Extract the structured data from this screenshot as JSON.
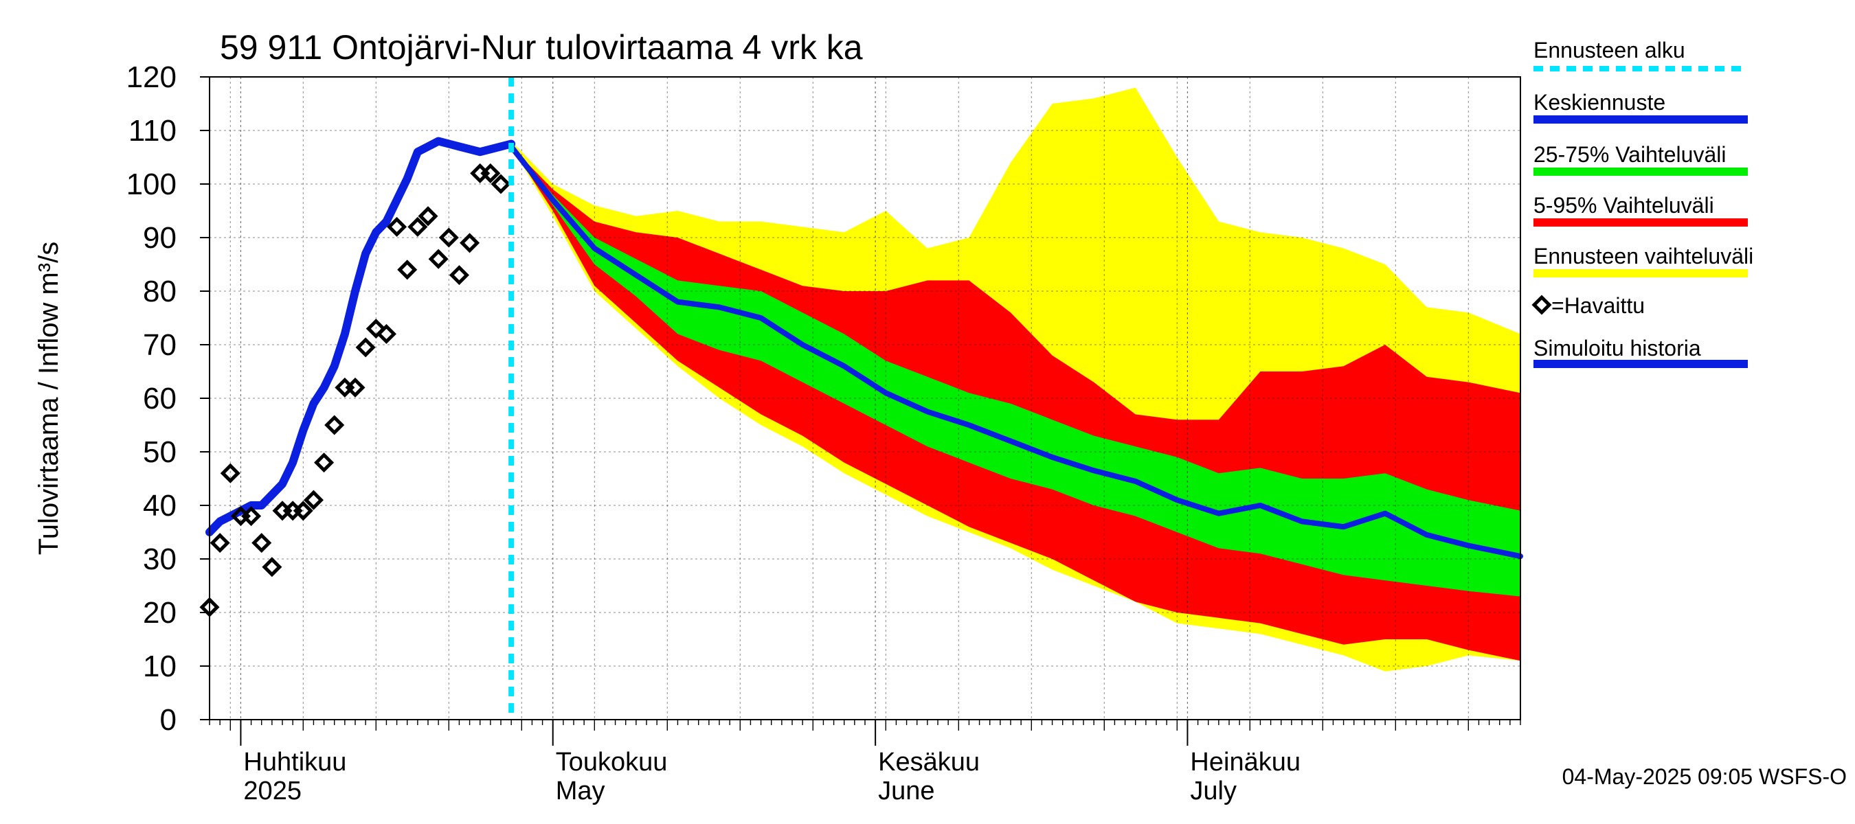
{
  "chart_data": {
    "type": "area",
    "title": "59 911 Ontojärvi-Nur tulovirtaama 4 vrk ka",
    "ylabel": "Tulovirtaama / Inflow    m³/s",
    "ylim": [
      0,
      120
    ],
    "yticks": [
      0,
      10,
      20,
      30,
      40,
      50,
      60,
      70,
      80,
      90,
      100,
      110,
      120
    ],
    "xlim": [
      "2025-03-29",
      "2025-08-02"
    ],
    "grid": true,
    "legend_position": "right",
    "month_labels": [
      {
        "date": "2025-04-01",
        "fi": "Huhtikuu",
        "en": "2025"
      },
      {
        "date": "2025-05-01",
        "fi": "Toukokuu",
        "en": "May"
      },
      {
        "date": "2025-06-01",
        "fi": "Kesäkuu",
        "en": "June"
      },
      {
        "date": "2025-07-01",
        "fi": "Heinäkuu",
        "en": "July"
      }
    ],
    "footer": "04-May-2025 09:05 WSFS-O",
    "forecast_start": "2025-04-27",
    "colors": {
      "forecast_start": "#00e5ff",
      "median": "#0a1fe0",
      "band_25_75": "#00ee00",
      "band_5_95": "#ff0000",
      "band_full": "#ffff00",
      "observed": "#000000",
      "history": "#0a1fe0"
    },
    "legend": [
      {
        "label": "Ennusteen alku",
        "kind": "dash",
        "color": "#00e5ff"
      },
      {
        "label": "Keskiennuste",
        "kind": "line",
        "color": "#0a1fe0"
      },
      {
        "label": "25-75% Vaihteluväli",
        "kind": "line",
        "color": "#00ee00"
      },
      {
        "label": "5-95% Vaihteluväli",
        "kind": "line",
        "color": "#ff0000"
      },
      {
        "label": "Ennusteen vaihteluväli",
        "kind": "line",
        "color": "#ffff00"
      },
      {
        "label": "=Havaittu",
        "kind": "marker",
        "color": "#000000"
      },
      {
        "label": "Simuloitu historia",
        "kind": "line",
        "color": "#0a1fe0"
      }
    ],
    "series": [
      {
        "name": "Simuloitu historia",
        "x": [
          "2025-03-29",
          "2025-03-30",
          "2025-03-31",
          "2025-04-01",
          "2025-04-02",
          "2025-04-03",
          "2025-04-04",
          "2025-04-05",
          "2025-04-06",
          "2025-04-07",
          "2025-04-08",
          "2025-04-09",
          "2025-04-10",
          "2025-04-11",
          "2025-04-12",
          "2025-04-13",
          "2025-04-14",
          "2025-04-15",
          "2025-04-16",
          "2025-04-17",
          "2025-04-18",
          "2025-04-19",
          "2025-04-20",
          "2025-04-21",
          "2025-04-22",
          "2025-04-23",
          "2025-04-24",
          "2025-04-25",
          "2025-04-26",
          "2025-04-27"
        ],
        "y": [
          35,
          37,
          38,
          39,
          40,
          40,
          42,
          44,
          48,
          54,
          59,
          62,
          66,
          72,
          80,
          87,
          91,
          93,
          97,
          101,
          106,
          107,
          108,
          107.5,
          107,
          106.5,
          106,
          106.5,
          107,
          107.5
        ]
      },
      {
        "name": "Havaittu",
        "x": [
          "2025-03-29",
          "2025-03-30",
          "2025-03-31",
          "2025-04-01",
          "2025-04-02",
          "2025-04-03",
          "2025-04-04",
          "2025-04-05",
          "2025-04-06",
          "2025-04-07",
          "2025-04-08",
          "2025-04-09",
          "2025-04-10",
          "2025-04-11",
          "2025-04-12",
          "2025-04-13",
          "2025-04-14",
          "2025-04-15",
          "2025-04-16",
          "2025-04-17",
          "2025-04-18",
          "2025-04-19",
          "2025-04-20",
          "2025-04-21",
          "2025-04-22",
          "2025-04-23",
          "2025-04-24",
          "2025-04-25",
          "2025-04-26"
        ],
        "y": [
          21,
          33,
          46,
          38,
          38,
          33,
          28.5,
          39,
          39,
          39,
          41,
          48,
          55,
          62,
          62,
          69.5,
          73,
          72,
          92,
          84,
          92,
          94,
          86,
          90,
          83,
          89,
          102,
          102,
          100
        ]
      },
      {
        "name": "Keskiennuste",
        "x": [
          "2025-04-27",
          "2025-05-01",
          "2025-05-05",
          "2025-05-09",
          "2025-05-13",
          "2025-05-17",
          "2025-05-21",
          "2025-05-25",
          "2025-05-29",
          "2025-06-02",
          "2025-06-06",
          "2025-06-10",
          "2025-06-14",
          "2025-06-18",
          "2025-06-22",
          "2025-06-26",
          "2025-06-30",
          "2025-07-04",
          "2025-07-08",
          "2025-07-12",
          "2025-07-16",
          "2025-07-20",
          "2025-07-24",
          "2025-07-28",
          "2025-08-02"
        ],
        "y": [
          107,
          97,
          88,
          83,
          78,
          77,
          75,
          70,
          66,
          61,
          57.5,
          55,
          52,
          49,
          46.5,
          44.5,
          41,
          38.5,
          40,
          37,
          36,
          38.5,
          34.5,
          32.5,
          30.5
        ]
      },
      {
        "name": "25-75% Vaihteluväli",
        "x": [
          "2025-04-27",
          "2025-05-01",
          "2025-05-05",
          "2025-05-09",
          "2025-05-13",
          "2025-05-17",
          "2025-05-21",
          "2025-05-25",
          "2025-05-29",
          "2025-06-02",
          "2025-06-06",
          "2025-06-10",
          "2025-06-14",
          "2025-06-18",
          "2025-06-22",
          "2025-06-26",
          "2025-06-30",
          "2025-07-04",
          "2025-07-08",
          "2025-07-12",
          "2025-07-16",
          "2025-07-20",
          "2025-07-24",
          "2025-07-28",
          "2025-08-02"
        ],
        "upper": [
          107,
          98,
          90,
          86,
          82,
          81,
          80,
          76,
          72,
          67,
          64,
          61,
          59,
          56,
          53,
          51,
          49,
          46,
          47,
          45,
          45,
          46,
          43,
          41,
          39
        ],
        "lower": [
          107,
          96,
          85,
          79,
          72,
          69,
          67,
          63,
          59,
          55,
          51,
          48,
          45,
          43,
          40,
          38,
          35,
          32,
          31,
          29,
          27,
          26,
          25,
          24,
          23
        ]
      },
      {
        "name": "5-95% Vaihteluväli",
        "x": [
          "2025-04-27",
          "2025-05-01",
          "2025-05-05",
          "2025-05-09",
          "2025-05-13",
          "2025-05-17",
          "2025-05-21",
          "2025-05-25",
          "2025-05-29",
          "2025-06-02",
          "2025-06-06",
          "2025-06-10",
          "2025-06-14",
          "2025-06-18",
          "2025-06-22",
          "2025-06-26",
          "2025-06-30",
          "2025-07-04",
          "2025-07-08",
          "2025-07-12",
          "2025-07-16",
          "2025-07-20",
          "2025-07-24",
          "2025-07-28",
          "2025-08-02"
        ],
        "upper": [
          107,
          99,
          93,
          91,
          90,
          87,
          84,
          81,
          80,
          80,
          82,
          82,
          76,
          68,
          63,
          57,
          56,
          56,
          65,
          65,
          66,
          70,
          64,
          63,
          61
        ],
        "lower": [
          107,
          95,
          81,
          74,
          67,
          62,
          57,
          53,
          48,
          44,
          40,
          36,
          33,
          30,
          26,
          22,
          20,
          19,
          18,
          16,
          14,
          15,
          15,
          13,
          11
        ]
      },
      {
        "name": "Ennusteen vaihteluväli",
        "x": [
          "2025-04-27",
          "2025-05-01",
          "2025-05-05",
          "2025-05-09",
          "2025-05-13",
          "2025-05-17",
          "2025-05-21",
          "2025-05-25",
          "2025-05-29",
          "2025-06-02",
          "2025-06-06",
          "2025-06-10",
          "2025-06-14",
          "2025-06-18",
          "2025-06-22",
          "2025-06-26",
          "2025-06-30",
          "2025-07-04",
          "2025-07-08",
          "2025-07-12",
          "2025-07-16",
          "2025-07-20",
          "2025-07-24",
          "2025-07-28",
          "2025-08-02"
        ],
        "upper": [
          108,
          100,
          96,
          94,
          95,
          93,
          93,
          92,
          91,
          95,
          88,
          90,
          104,
          115,
          116,
          118,
          105,
          93,
          91,
          90,
          88,
          85,
          77,
          76,
          72
        ],
        "lower": [
          107,
          94,
          80,
          73,
          66,
          60,
          55,
          51,
          46,
          42,
          38,
          35,
          32,
          28,
          25,
          22,
          18,
          17,
          16,
          14,
          12,
          9,
          10,
          12,
          11
        ]
      }
    ]
  }
}
